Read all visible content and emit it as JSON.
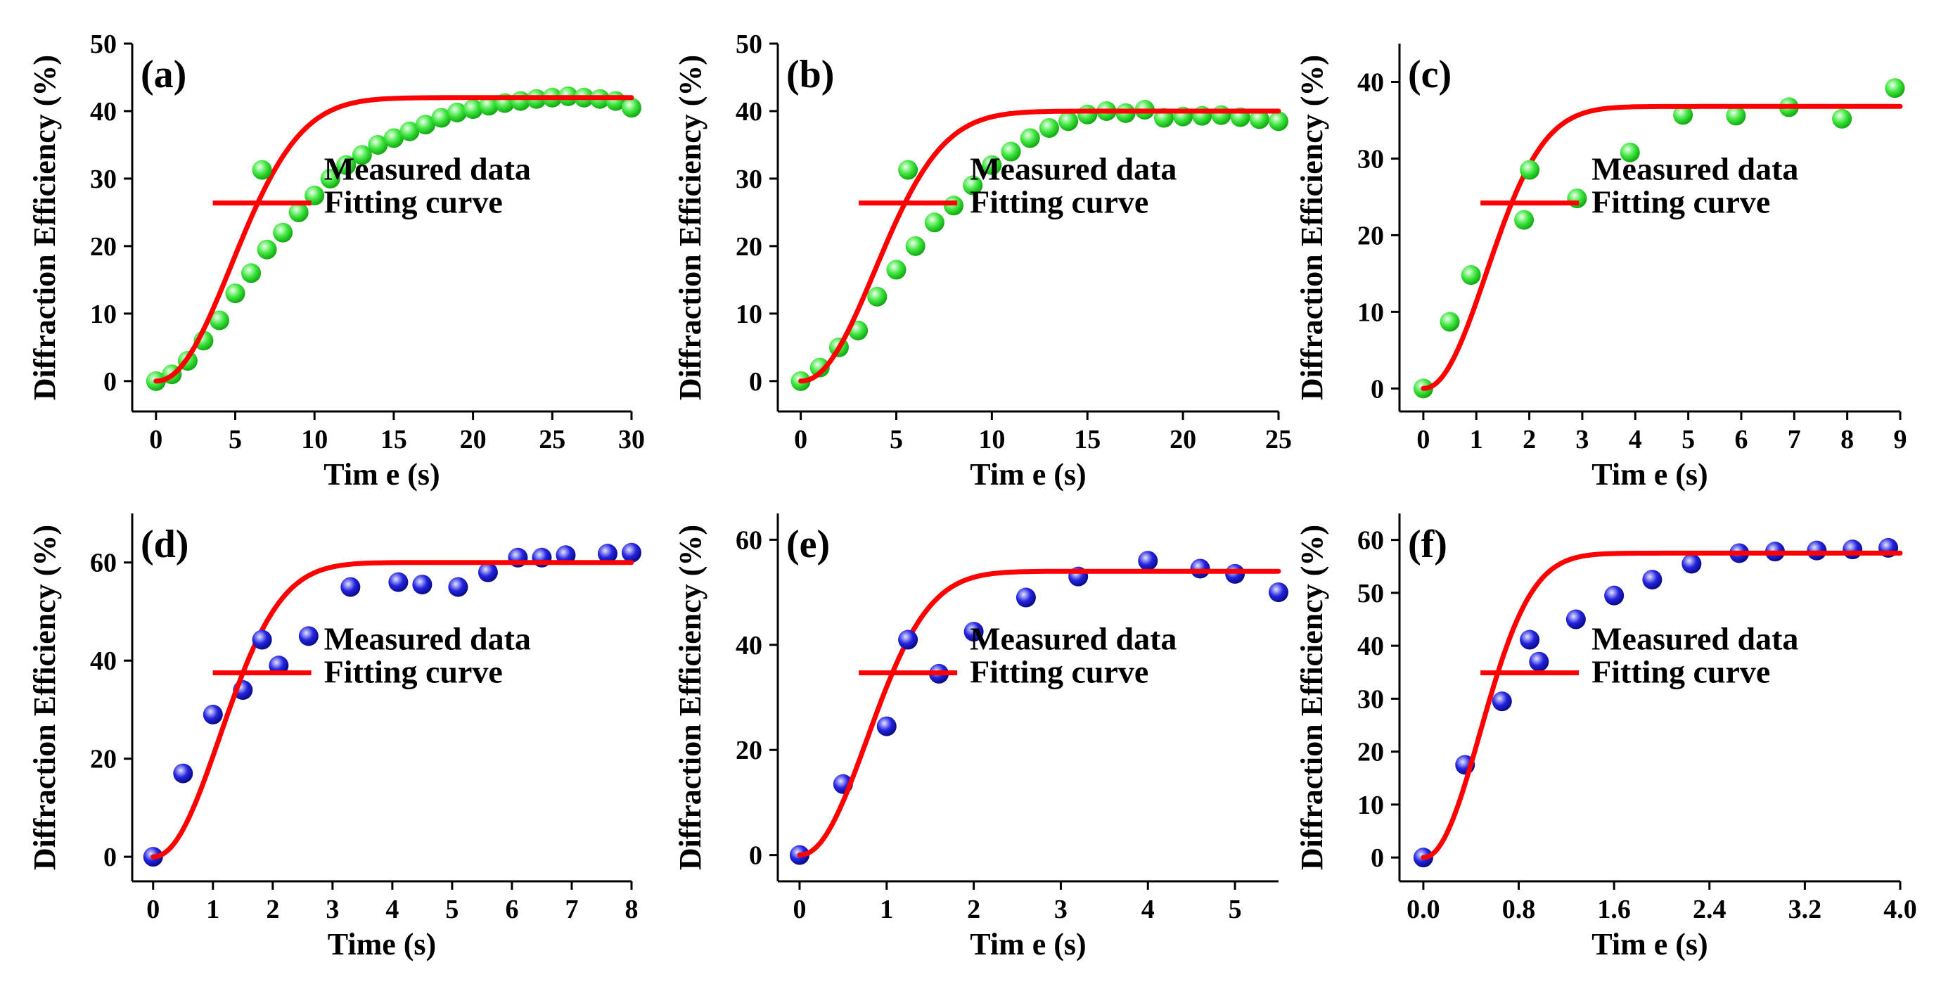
{
  "legend": {
    "measured": "Measured data",
    "fitting": "Fitting curve"
  },
  "colors": {
    "green": "#3ee63e",
    "blue": "#2424e0",
    "fit": "#ff0000"
  },
  "chart_data": [
    {
      "panel": "(a)",
      "type": "scatter",
      "marker": "green",
      "xlabel": "Tim e (s)",
      "ylabel": "Diffraction Efficiency (%)",
      "xlim": [
        -1.5,
        30
      ],
      "ylim": [
        -4.5,
        50
      ],
      "xticks": [
        0,
        5,
        10,
        15,
        20,
        25,
        30
      ],
      "xticklabels": [
        "0",
        "5",
        "10",
        "15",
        "20",
        "25",
        "30"
      ],
      "yticks": [
        0,
        10,
        20,
        30,
        40,
        50
      ],
      "yticklabels": [
        "0",
        "10",
        "20",
        "30",
        "40",
        "50"
      ],
      "measured": {
        "x": [
          0,
          1,
          2,
          3,
          4,
          5,
          6,
          7,
          8,
          9,
          10,
          11,
          12,
          13,
          14,
          15,
          16,
          17,
          18,
          19,
          20,
          21,
          22,
          23,
          24,
          25,
          26,
          27,
          28,
          29,
          30
        ],
        "y": [
          0,
          1,
          3,
          6,
          9,
          13,
          16,
          19.5,
          22,
          25,
          27.5,
          30,
          32,
          33.5,
          35,
          36,
          37,
          38,
          39,
          39.8,
          40.3,
          40.8,
          41.2,
          41.5,
          41.8,
          42,
          42.2,
          42,
          41.8,
          41.5,
          40.5
        ]
      },
      "fit": {
        "model": "sigmoid",
        "A": 42,
        "k": 0.155,
        "p": 2.1,
        "xmax": 30
      }
    },
    {
      "panel": "(b)",
      "type": "scatter",
      "marker": "green",
      "xlabel": "Tim e (s)",
      "ylabel": "Diffraction Efficiency (%)",
      "xlim": [
        -1.2,
        25
      ],
      "ylim": [
        -4.5,
        50
      ],
      "xticks": [
        0,
        5,
        10,
        15,
        20,
        25
      ],
      "xticklabels": [
        "0",
        "5",
        "10",
        "15",
        "20",
        "25"
      ],
      "yticks": [
        0,
        10,
        20,
        30,
        40,
        50
      ],
      "yticklabels": [
        "0",
        "10",
        "20",
        "30",
        "40",
        "50"
      ],
      "measured": {
        "x": [
          0,
          1,
          2,
          3,
          4,
          5,
          6,
          7,
          8,
          9,
          10,
          11,
          12,
          13,
          14,
          15,
          16,
          17,
          18,
          19,
          20,
          21,
          22,
          23,
          24,
          25
        ],
        "y": [
          0,
          2,
          5,
          7.5,
          12.5,
          16.5,
          20,
          23.5,
          26,
          29,
          32,
          34,
          36,
          37.5,
          38.5,
          39.5,
          40,
          39.7,
          40.2,
          39,
          39.2,
          39.3,
          39.4,
          39.1,
          38.8,
          38.5
        ]
      },
      "fit": {
        "model": "sigmoid",
        "A": 40,
        "k": 0.19,
        "p": 2.1,
        "xmax": 25
      }
    },
    {
      "panel": "(c)",
      "type": "scatter",
      "marker": "green",
      "xlabel": "Tim e (s)",
      "ylabel": "Diffraction Efficiency (%)",
      "xlim": [
        -0.45,
        9
      ],
      "ylim": [
        -3,
        45
      ],
      "xticks": [
        0,
        1,
        2,
        3,
        4,
        5,
        6,
        7,
        8,
        9
      ],
      "xticklabels": [
        "0",
        "1",
        "2",
        "3",
        "4",
        "5",
        "6",
        "7",
        "8",
        "9"
      ],
      "yticks": [
        0,
        10,
        20,
        30,
        40
      ],
      "yticklabels": [
        "0",
        "10",
        "20",
        "30",
        "40"
      ],
      "measured": {
        "x": [
          0,
          0.5,
          0.9,
          1.9,
          2.9,
          3.9,
          4.9,
          5.9,
          6.9,
          7.9,
          8.9
        ],
        "y": [
          0,
          8.7,
          14.8,
          22,
          24.8,
          30.8,
          35.7,
          35.6,
          36.7,
          35.2,
          39.2
        ]
      },
      "fit": {
        "model": "sigmoid",
        "A": 36.8,
        "k": 0.62,
        "p": 2.1,
        "xmax": 9
      }
    },
    {
      "panel": "(d)",
      "type": "scatter",
      "marker": "blue",
      "xlabel": "Time (s)",
      "ylabel": "Diffraction Efficiency (%)",
      "xlim": [
        -0.35,
        8
      ],
      "ylim": [
        -5,
        70
      ],
      "xticks": [
        0,
        1,
        2,
        3,
        4,
        5,
        6,
        7,
        8
      ],
      "xticklabels": [
        "0",
        "1",
        "2",
        "3",
        "4",
        "5",
        "6",
        "7",
        "8"
      ],
      "yticks": [
        0,
        20,
        40,
        60
      ],
      "yticklabels": [
        "0",
        "20",
        "40",
        "60"
      ],
      "measured": {
        "x": [
          0,
          0.5,
          1,
          1.5,
          2.1,
          2.6,
          3.3,
          4.1,
          4.5,
          5.1,
          5.6,
          6.1,
          6.5,
          6.9,
          7.6,
          8
        ],
        "y": [
          0,
          17,
          29,
          34,
          39,
          45,
          55,
          56,
          55.5,
          55,
          58,
          61,
          61,
          61.5,
          61.8,
          62
        ]
      },
      "fit": {
        "model": "sigmoid",
        "A": 60,
        "k": 0.66,
        "p": 2.1,
        "xmax": 8
      }
    },
    {
      "panel": "(e)",
      "type": "scatter",
      "marker": "blue",
      "xlabel": "Tim e (s)",
      "ylabel": "Diffraction Efficiency (%)",
      "xlim": [
        -0.25,
        5.5
      ],
      "ylim": [
        -5,
        65
      ],
      "xticks": [
        0,
        1,
        2,
        3,
        4,
        5
      ],
      "xticklabels": [
        "0",
        "1",
        "2",
        "3",
        "4",
        "5"
      ],
      "yticks": [
        0,
        20,
        40,
        60
      ],
      "yticklabels": [
        "0",
        "20",
        "40",
        "60"
      ],
      "measured": {
        "x": [
          0,
          0.5,
          1,
          1.6,
          2,
          2.6,
          3.2,
          4,
          4.6,
          5,
          5.5
        ],
        "y": [
          0,
          13.5,
          24.5,
          34.5,
          42.5,
          49,
          53,
          56,
          54.5,
          53.5,
          50
        ]
      },
      "fit": {
        "model": "sigmoid",
        "A": 54,
        "k": 0.95,
        "p": 2.1,
        "xmax": 5.5
      }
    },
    {
      "panel": "(f)",
      "type": "scatter",
      "marker": "blue",
      "xlabel": "Tim e (s)",
      "ylabel": "Diffraction Efficiency (%)",
      "xlim": [
        -0.2,
        4
      ],
      "ylim": [
        -4.5,
        65
      ],
      "xticks": [
        0,
        0.8,
        1.6,
        2.4,
        3.2,
        4
      ],
      "xticklabels": [
        "0.0",
        "0.8",
        "1.6",
        "2.4",
        "3.2",
        "4.0"
      ],
      "yticks": [
        0,
        10,
        20,
        30,
        40,
        50,
        60
      ],
      "yticklabels": [
        "0",
        "10",
        "20",
        "30",
        "40",
        "50",
        "60"
      ],
      "measured": {
        "x": [
          0,
          0.35,
          0.66,
          0.97,
          1.28,
          1.6,
          1.92,
          2.25,
          2.65,
          2.95,
          3.3,
          3.6,
          3.9
        ],
        "y": [
          0,
          17.5,
          29.5,
          37,
          45,
          49.5,
          52.5,
          55.5,
          57.5,
          57.8,
          58,
          58.2,
          58.5
        ]
      },
      "fit": {
        "model": "sigmoid",
        "A": 57.5,
        "k": 1.55,
        "p": 2.1,
        "xmax": 4
      }
    }
  ]
}
